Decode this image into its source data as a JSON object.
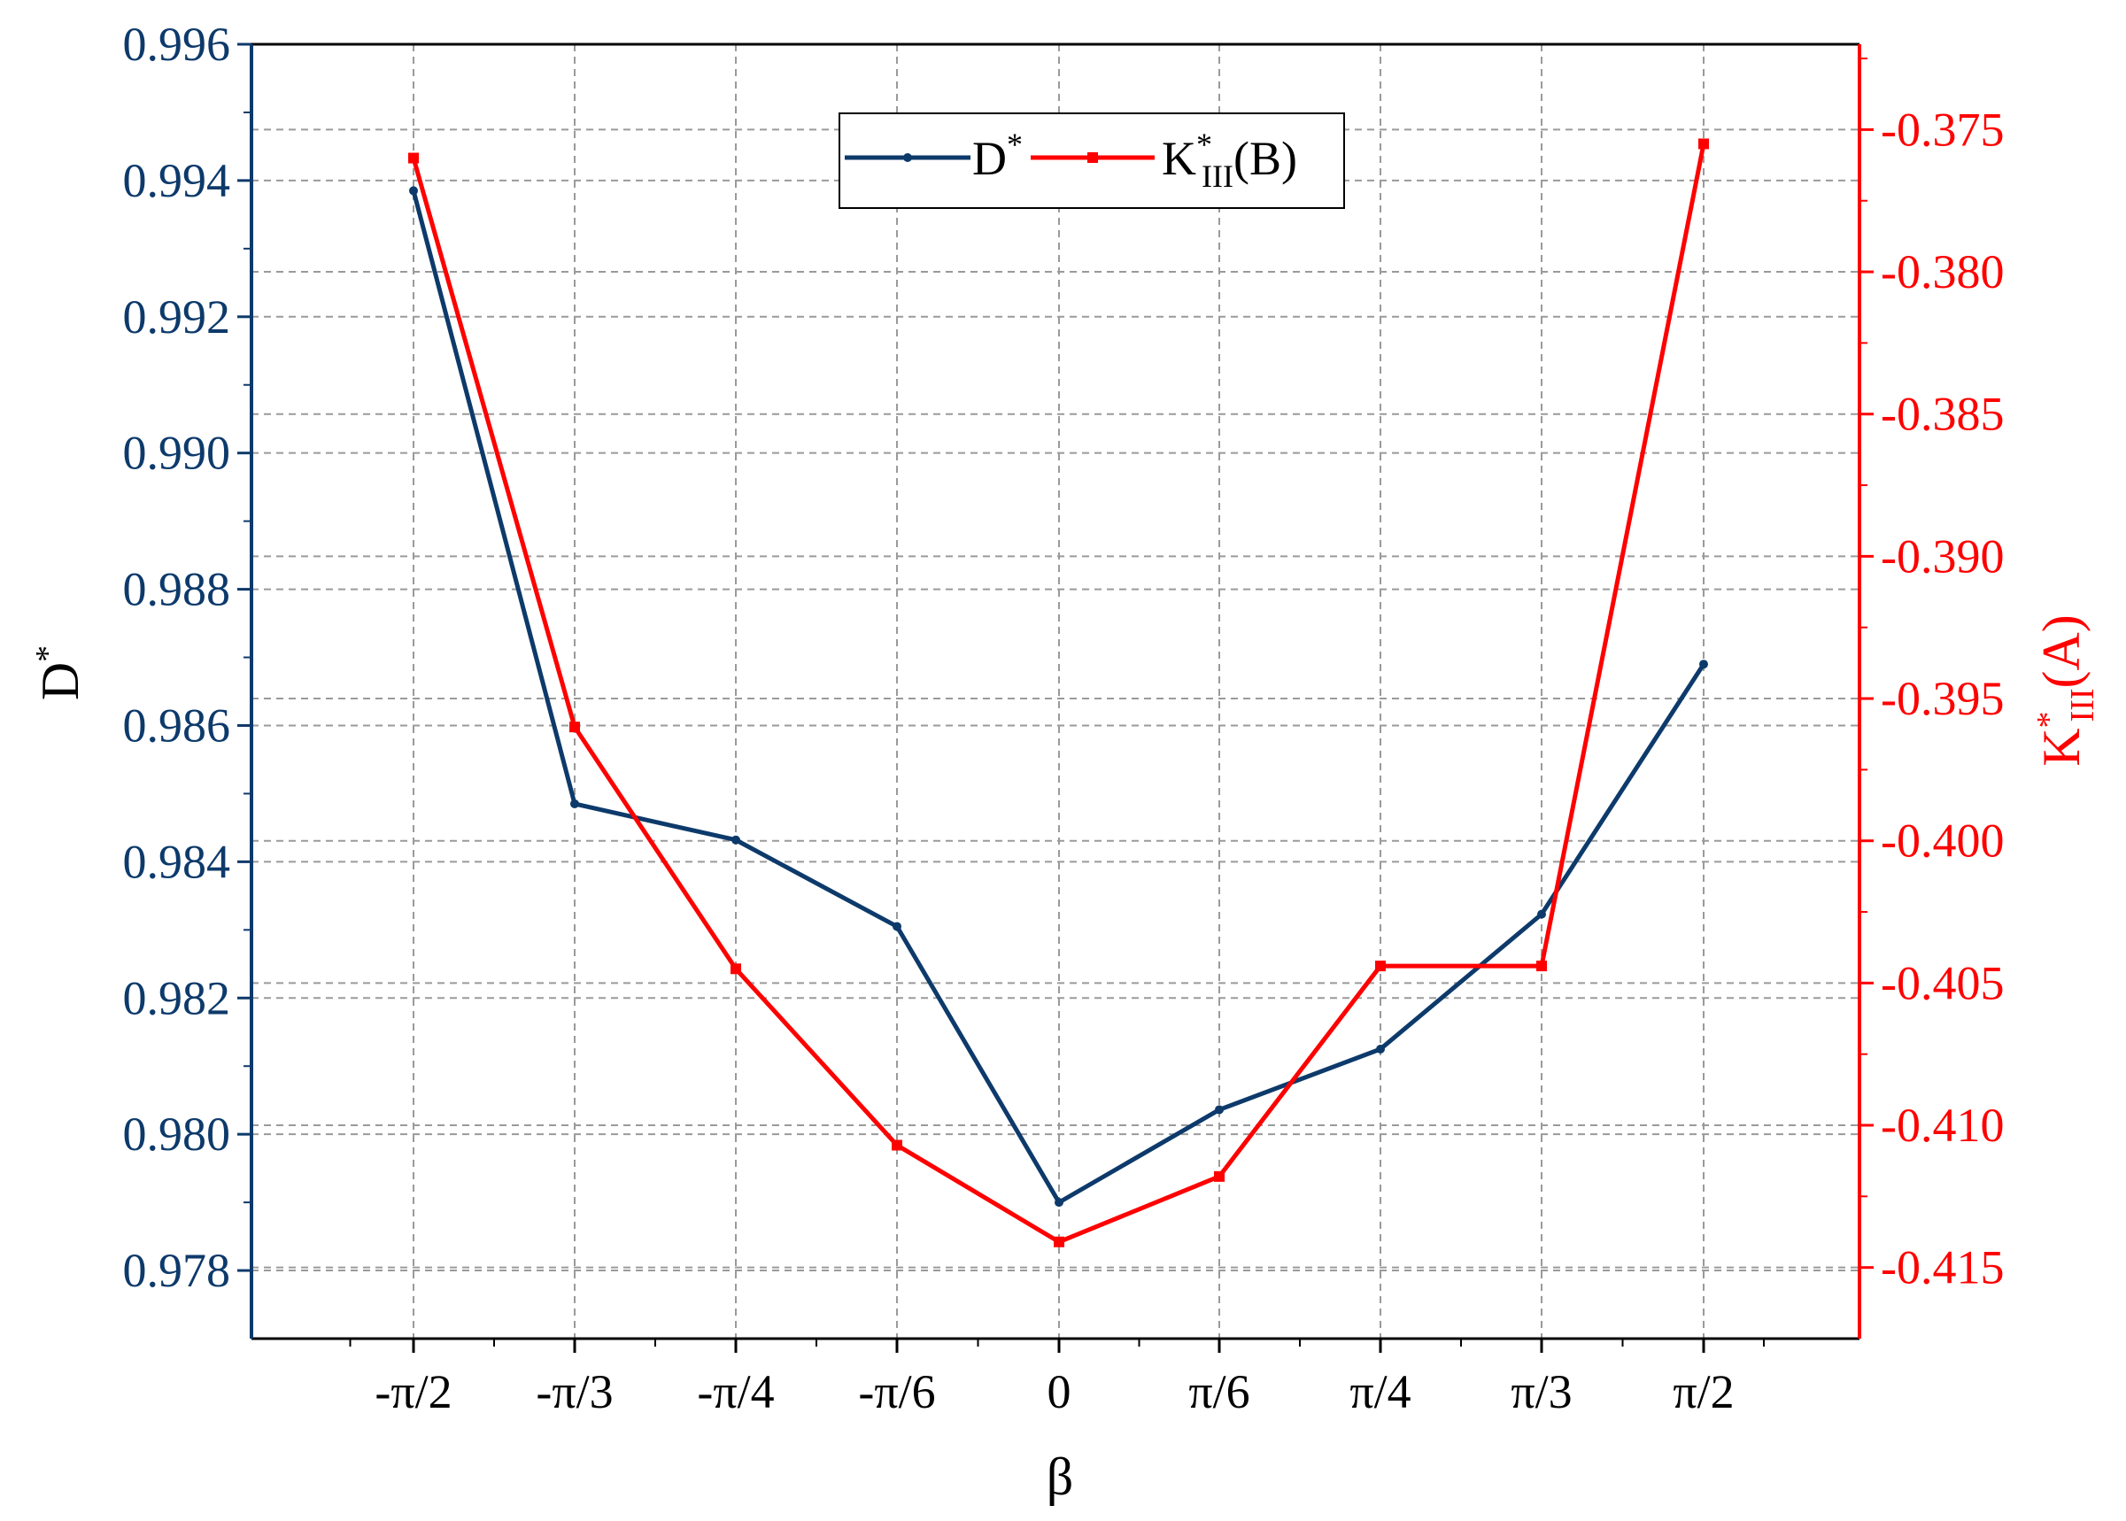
{
  "chart_data": {
    "type": "line",
    "categories": [
      "-π/2",
      "-π/3",
      "-π/4",
      "-π/6",
      "0",
      "π/6",
      "π/4",
      "π/3",
      "π/2"
    ],
    "xlabel": "β",
    "ylabel_left": {
      "main": "D",
      "sup": "*"
    },
    "ylabel_right": {
      "main": "K",
      "sup": "*",
      "sub": "III",
      "tail": "(A)"
    },
    "ylim_left": [
      0.977,
      0.996
    ],
    "ylim_right": [
      -0.4175,
      -0.372
    ],
    "yticks_left": [
      0.978,
      0.98,
      0.982,
      0.984,
      0.986,
      0.988,
      0.99,
      0.992,
      0.994,
      0.996
    ],
    "yticks_right": [
      -0.415,
      -0.41,
      -0.405,
      -0.4,
      -0.395,
      -0.39,
      -0.385,
      -0.38,
      -0.375
    ],
    "grid": true,
    "legend_position": "top-center",
    "series": [
      {
        "name": "D*",
        "legend_label": {
          "main": "D",
          "sup": "*",
          "sub": "",
          "tail": ""
        },
        "axis": "left",
        "color": "#0d3a6b",
        "marker": "circle",
        "values": [
          0.99385,
          0.98485,
          0.98432,
          0.98305,
          0.979,
          0.98036,
          0.98125,
          0.98323,
          0.9869
        ]
      },
      {
        "name": "K*III(B)",
        "legend_label": {
          "main": "K",
          "sup": "*",
          "sub": "III",
          "tail": "(B)"
        },
        "axis": "right",
        "color": "#ff0000",
        "marker": "square",
        "values": [
          -0.376,
          -0.396,
          -0.4045,
          -0.4107,
          -0.4141,
          -0.4118,
          -0.4044,
          -0.4044,
          -0.3755
        ]
      }
    ],
    "colors": {
      "left_axis": "#0d3a6b",
      "right_axis": "#ff0000",
      "grid": "#9a9a9a",
      "frame": "#0d3a6b"
    }
  }
}
